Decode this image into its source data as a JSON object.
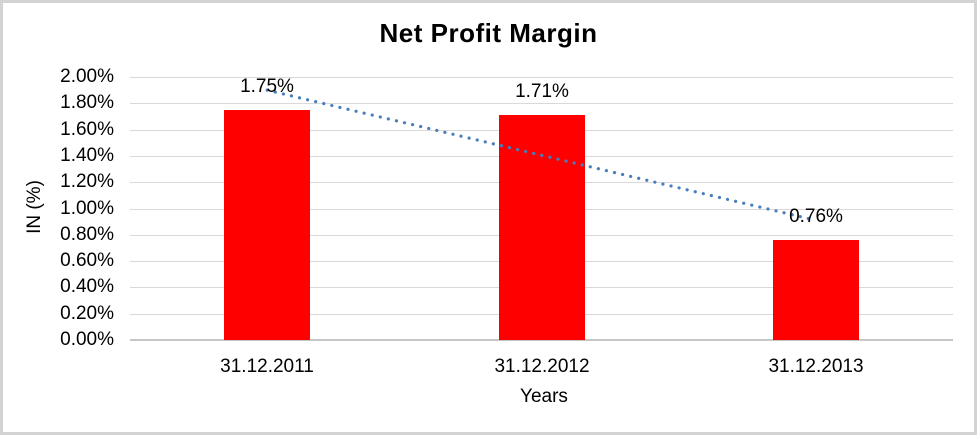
{
  "window": {
    "background": "#ffffff",
    "frame_border_color": "#d3d3d3"
  },
  "chart_data": {
    "type": "bar",
    "title": "Net Profit Margin",
    "xlabel": "Years",
    "ylabel": "IN (%)",
    "categories": [
      "31.12.2011",
      "31.12.2012",
      "31.12.2013"
    ],
    "series": [
      {
        "name": "Net Profit Margin",
        "color": "#ff0000",
        "values": [
          1.75,
          1.71,
          0.76
        ],
        "value_labels": [
          "1.75%",
          "1.71%",
          "0.76%"
        ]
      }
    ],
    "ylim": [
      0,
      2.0
    ],
    "ytick_step": 0.2,
    "yticks": [
      {
        "v": 0.0,
        "label": "0.00%"
      },
      {
        "v": 0.2,
        "label": "0.20%"
      },
      {
        "v": 0.4,
        "label": "0.40%"
      },
      {
        "v": 0.6,
        "label": "0.60%"
      },
      {
        "v": 0.8,
        "label": "0.80%"
      },
      {
        "v": 1.0,
        "label": "1.00%"
      },
      {
        "v": 1.2,
        "label": "1.20%"
      },
      {
        "v": 1.4,
        "label": "1.40%"
      },
      {
        "v": 1.6,
        "label": "1.60%"
      },
      {
        "v": 1.8,
        "label": "1.80%"
      },
      {
        "v": 2.0,
        "label": "2.00%"
      }
    ],
    "grid": true,
    "gridline_color": "#d9d9d9",
    "axis_line_color": "#c6c6c6",
    "text_color": "#000000",
    "legend": "none",
    "trendline": {
      "type": "linear",
      "style": "dotted",
      "color": "#4a7ebb",
      "start_value": 1.9,
      "end_value": 0.91
    }
  }
}
